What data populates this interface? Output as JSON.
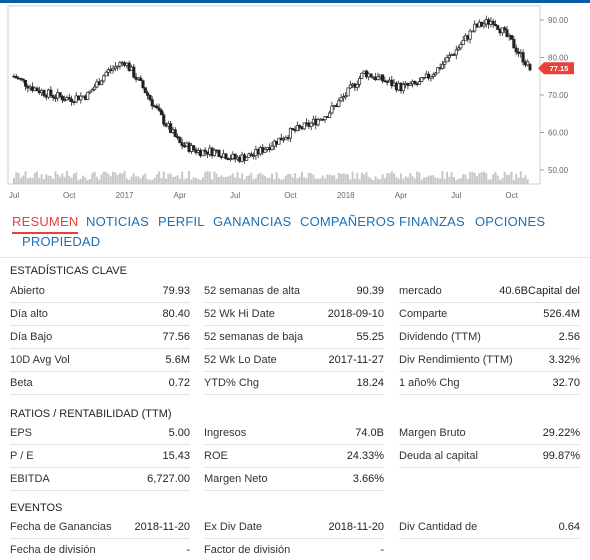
{
  "chart": {
    "price_badge": "77.15",
    "colors": {
      "accent_red": "#e8403a",
      "tab_blue": "#1a6fb5",
      "candle": "#222222",
      "volume": "#c8c8c8"
    },
    "y_ticks": [
      "90.00",
      "80.00",
      "70.00",
      "60.00",
      "50.00"
    ],
    "x_ticks": [
      "Jul",
      "Oct",
      "2017",
      "Apr",
      "Jul",
      "Oct",
      "2018",
      "Apr",
      "Jul",
      "Oct"
    ]
  },
  "chart_data": {
    "type": "line",
    "title": "",
    "ylim": [
      50,
      90
    ],
    "x": [
      "2016-07",
      "2016-08",
      "2016-09",
      "2016-10",
      "2016-11",
      "2016-12",
      "2017-01",
      "2017-02",
      "2017-03",
      "2017-04",
      "2017-05",
      "2017-06",
      "2017-07",
      "2017-08",
      "2017-09",
      "2017-10",
      "2017-11",
      "2017-12",
      "2018-01",
      "2018-02",
      "2018-03",
      "2018-04",
      "2018-05",
      "2018-06",
      "2018-07",
      "2018-08",
      "2018-09",
      "2018-10",
      "2018-11"
    ],
    "series": [
      {
        "values": [
          75,
          72,
          70,
          69,
          70,
          76,
          79,
          72,
          64,
          57,
          55,
          55,
          53,
          54,
          57,
          60,
          62,
          65,
          70,
          76,
          74,
          72,
          73,
          77,
          82,
          88,
          90,
          84,
          77.15
        ]
      }
    ]
  },
  "tabs": [
    {
      "label": "RESUMEN"
    },
    {
      "label": "NOTICIAS"
    },
    {
      "label": "PERFIL"
    },
    {
      "label": "GANANCIAS"
    },
    {
      "label": "COMPAÑEROS"
    },
    {
      "label": "FINANZAS"
    },
    {
      "label": "OPCIONES"
    },
    {
      "label": "PROPIEDAD"
    }
  ],
  "key_stats": {
    "title": "ESTADÍSTICAS CLAVE",
    "col1": [
      {
        "label": "Abierto",
        "value": "79.93"
      },
      {
        "label": "Día alto",
        "value": "80.40"
      },
      {
        "label": "Día Bajo",
        "value": "77.56"
      },
      {
        "label": "10D Avg Vol",
        "value": "5.6M"
      },
      {
        "label": "Beta",
        "value": "0.72"
      }
    ],
    "col2": [
      {
        "label": "52 semanas de alta",
        "value": "90.39"
      },
      {
        "label": "52 Wk Hi Date",
        "value": "2018-09-10"
      },
      {
        "label": "52 semanas de baja",
        "value": "55.25"
      },
      {
        "label": "52 Wk Lo Date",
        "value": "2017-11-27"
      },
      {
        "label": "YTD% Chg",
        "value": "18.24"
      }
    ],
    "col3": [
      {
        "label": "mercado",
        "value": "40.6BCapital del"
      },
      {
        "label": "Comparte",
        "value": "526.4M"
      },
      {
        "label": "Dividendo (TTM)",
        "value": "2.56"
      },
      {
        "label": "Div Rendimiento (TTM)",
        "value": "3.32%"
      },
      {
        "label": "1 año% Chg",
        "value": "32.70"
      }
    ]
  },
  "ratios": {
    "title": "RATIOS / RENTABILIDAD (TTM)",
    "col1": [
      {
        "label": "EPS",
        "value": "5.00"
      },
      {
        "label": "P / E",
        "value": "15.43"
      },
      {
        "label": "EBITDA",
        "value": "6,727.00"
      }
    ],
    "col2": [
      {
        "label": "Ingresos",
        "value": "74.0B"
      },
      {
        "label": "ROE",
        "value": "24.33%"
      },
      {
        "label": "Margen Neto",
        "value": "3.66%"
      }
    ],
    "col3": [
      {
        "label": "Margen Bruto",
        "value": "29.22%"
      },
      {
        "label": "Deuda al capital",
        "value": "99.87%"
      }
    ]
  },
  "events": {
    "title": "EVENTOS",
    "col1": [
      {
        "label": "Fecha de Ganancias",
        "value": "2018-11-20"
      },
      {
        "label": "Fecha de división",
        "value": "-"
      }
    ],
    "col2": [
      {
        "label": "Ex Div Date",
        "value": "2018-11-20"
      },
      {
        "label": "Factor de división",
        "value": "-"
      }
    ],
    "col3": [
      {
        "label": "Div Cantidad de",
        "value": "0.64"
      }
    ]
  }
}
